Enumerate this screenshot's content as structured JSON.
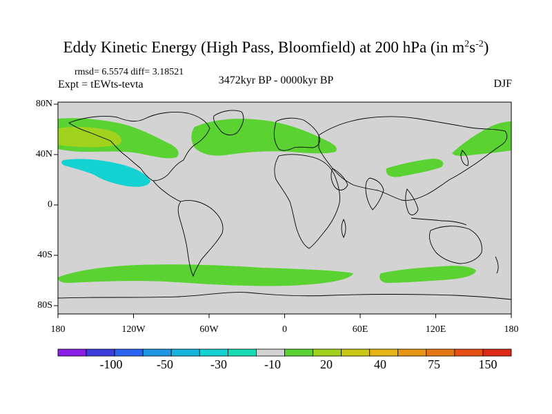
{
  "title": {
    "main": "Eddy Kinetic Energy (High Pass, Bloomfield) at 200 hPa (in m",
    "sup1": "2",
    "mid": "s",
    "sup2": "-2",
    "end": ")"
  },
  "stats": "rmsd= 6.5574 diff= 3.18521",
  "expt": "Expt = tEWts-tevta",
  "period": "3472kyr BP - 0000kyr BP",
  "season": "DJF",
  "y_axis_labels": [
    "80N",
    "40N",
    "0",
    "40S",
    "80S"
  ],
  "x_axis_labels": [
    "180",
    "120W",
    "60W",
    "0",
    "60E",
    "120E",
    "180"
  ],
  "colorbar": {
    "colors": [
      "#8a1ee6",
      "#3c3cdc",
      "#2864f0",
      "#1e96e6",
      "#14b4dc",
      "#14d2d2",
      "#14dcb4",
      "#d2d2d2",
      "#5ad232",
      "#a0d21e",
      "#c8c814",
      "#e6b414",
      "#e69614",
      "#e67814",
      "#e65014",
      "#dc2814"
    ],
    "labels": [
      "-100",
      "-50",
      "-30",
      "-10",
      "20",
      "40",
      "75",
      "150"
    ]
  },
  "regions": [
    {
      "name": "north-pacific-band",
      "color": "#5ad232"
    },
    {
      "name": "north-pacific-core",
      "color": "#a0d21e"
    },
    {
      "name": "east-pacific-negative",
      "color": "#14d2d2"
    },
    {
      "name": "north-atlantic-band",
      "color": "#5ad232"
    },
    {
      "name": "asia-jet-band",
      "color": "#5ad232"
    },
    {
      "name": "northwest-pacific-band",
      "color": "#5ad232"
    },
    {
      "name": "southern-ocean-band-west",
      "color": "#5ad232"
    },
    {
      "name": "southern-ocean-band-east",
      "color": "#5ad232"
    }
  ]
}
